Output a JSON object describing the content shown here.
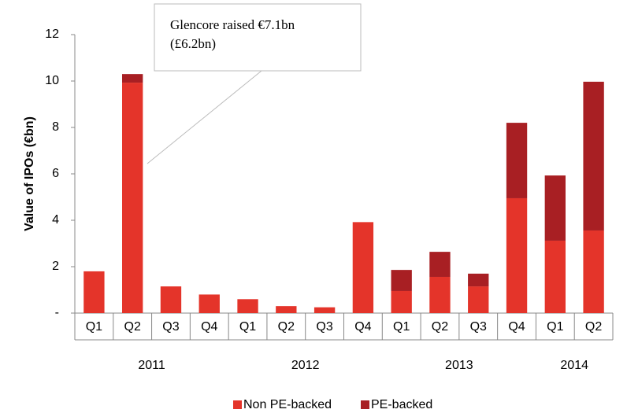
{
  "chart_data": {
    "type": "stacked_bar",
    "y_axis_label": "Value of IPOs (€bn)",
    "categories": [
      "Q1",
      "Q2",
      "Q3",
      "Q4",
      "Q1",
      "Q2",
      "Q3",
      "Q4",
      "Q1",
      "Q2",
      "Q3",
      "Q4",
      "Q1",
      "Q2"
    ],
    "year_groups": [
      {
        "name": "2011",
        "count": 4
      },
      {
        "name": "2012",
        "count": 4
      },
      {
        "name": "2013",
        "count": 4
      },
      {
        "name": "2014",
        "count": 2
      }
    ],
    "series": [
      {
        "name": "Non PE-backed",
        "color": "#e4342a",
        "values": [
          1.8,
          9.93,
          1.15,
          0.8,
          0.6,
          0.3,
          0.25,
          3.92,
          0.95,
          1.56,
          1.15,
          4.95,
          3.12,
          3.56
        ]
      },
      {
        "name": "PE-backed",
        "color": "#a81f23",
        "values": [
          0,
          0.37,
          0,
          0,
          0,
          0,
          0,
          0,
          0.91,
          1.08,
          0.55,
          3.25,
          2.81,
          6.41
        ]
      }
    ],
    "ylim": [
      0,
      12
    ],
    "yticks": [
      {
        "value": 0,
        "label": "-"
      },
      2,
      4,
      6,
      8,
      10,
      12
    ],
    "annotation": {
      "lines": [
        "Glencore raised €7.1bn",
        "(£6.2bn)"
      ]
    },
    "legend": "bottom"
  }
}
